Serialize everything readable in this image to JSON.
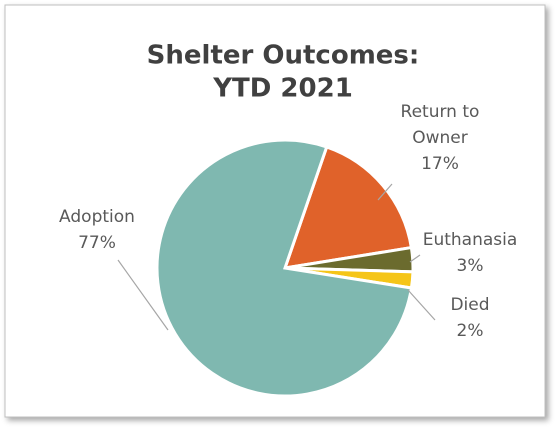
{
  "chart_data": {
    "type": "pie",
    "title": [
      "Shelter Outcomes:",
      "YTD 2021"
    ],
    "categories": [
      "Return to Owner",
      "Euthanasia",
      "Died",
      "Adoption"
    ],
    "values": [
      17,
      3,
      2,
      77
    ],
    "value_labels": [
      "17%",
      "3%",
      "2%",
      "77%"
    ],
    "colors": [
      "#e0622a",
      "#6b6b2e",
      "#f5c518",
      "#7fb8b0"
    ]
  }
}
